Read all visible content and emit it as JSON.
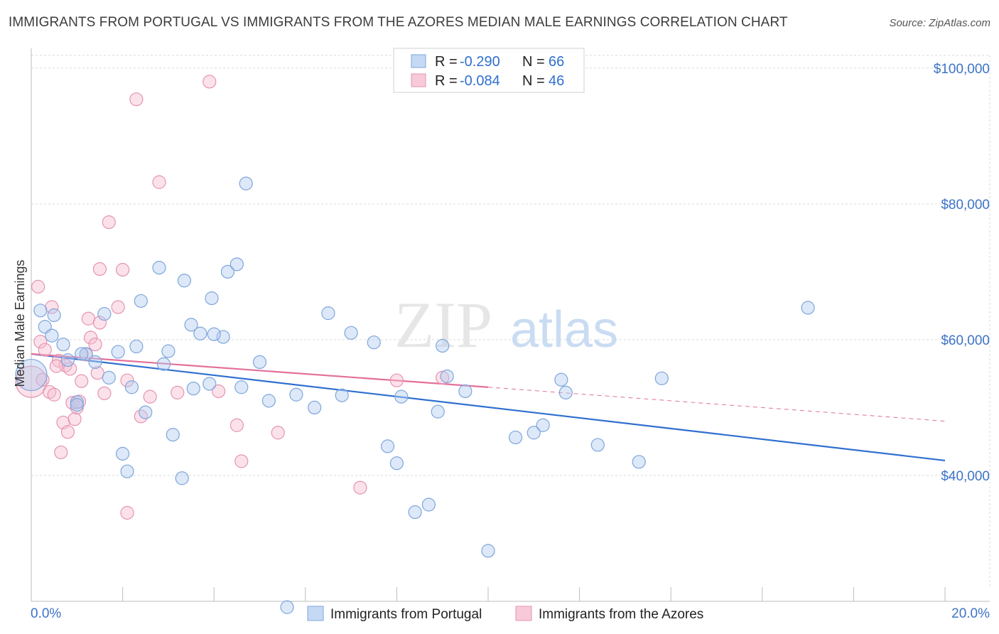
{
  "title": "IMMIGRANTS FROM PORTUGAL VS IMMIGRANTS FROM THE AZORES MEDIAN MALE EARNINGS CORRELATION CHART",
  "source": "Source: ZipAtlas.com",
  "watermark": {
    "zip": "ZIP",
    "atlas": "atlas"
  },
  "chart_data": {
    "type": "scatter",
    "ylabel": "Median Male Earnings",
    "xlim": [
      0,
      20
    ],
    "ylim": [
      20000,
      102000
    ],
    "x_tick_labels": {
      "left": "0.0%",
      "right": "20.0%"
    },
    "y_ticks": [
      {
        "value": 40000,
        "label": "$40,000"
      },
      {
        "value": 60000,
        "label": "$60,000"
      },
      {
        "value": 80000,
        "label": "$80,000"
      },
      {
        "value": 100000,
        "label": "$100,000"
      }
    ],
    "colors": {
      "portugal": "#6f9fdf",
      "azores": "#ea90ae",
      "portugal_line": "#2f6fd0",
      "azores_line": "#e3709a"
    },
    "legend_stats": [
      {
        "r_label": "R = ",
        "r": "-0.290",
        "n_label": "N = ",
        "n": "66"
      },
      {
        "r_label": "R = ",
        "r": "-0.084",
        "n_label": "N = ",
        "n": "46"
      }
    ],
    "series": [
      {
        "name": "Immigrants from Portugal",
        "trend": {
          "x0": 0,
          "y0": 57900,
          "x1": 20,
          "y1": 42200
        },
        "points": [
          [
            0.0,
            54800,
            1
          ],
          [
            0.2,
            64300,
            0
          ],
          [
            0.3,
            61900,
            0
          ],
          [
            0.45,
            60600,
            0
          ],
          [
            0.5,
            63600,
            0
          ],
          [
            0.7,
            59300,
            0
          ],
          [
            0.8,
            57000,
            0
          ],
          [
            1.0,
            50800,
            0
          ],
          [
            1.0,
            50400,
            0
          ],
          [
            1.2,
            57900,
            0
          ],
          [
            1.4,
            56700,
            0
          ],
          [
            1.6,
            63800,
            0
          ],
          [
            1.7,
            54400,
            0
          ],
          [
            1.9,
            58200,
            0
          ],
          [
            2.0,
            43200,
            0
          ],
          [
            2.1,
            40600,
            0
          ],
          [
            2.2,
            53000,
            0
          ],
          [
            2.3,
            59000,
            0
          ],
          [
            2.4,
            65700,
            0
          ],
          [
            2.5,
            49300,
            0
          ],
          [
            2.8,
            70600,
            0
          ],
          [
            2.9,
            56400,
            0
          ],
          [
            3.0,
            58300,
            0
          ],
          [
            3.1,
            46000,
            0
          ],
          [
            3.3,
            39600,
            0
          ],
          [
            3.35,
            68700,
            0
          ],
          [
            3.5,
            62200,
            0
          ],
          [
            3.55,
            52800,
            0
          ],
          [
            3.7,
            60900,
            0
          ],
          [
            3.9,
            53500,
            0
          ],
          [
            3.95,
            66100,
            0
          ],
          [
            4.2,
            60400,
            0
          ],
          [
            4.3,
            70000,
            0
          ],
          [
            4.5,
            71100,
            0
          ],
          [
            4.6,
            53000,
            0
          ],
          [
            4.7,
            83000,
            0
          ],
          [
            5.0,
            56700,
            0
          ],
          [
            5.2,
            51000,
            0
          ],
          [
            5.6,
            20600,
            0
          ],
          [
            5.8,
            51900,
            0
          ],
          [
            6.2,
            50000,
            0
          ],
          [
            6.5,
            63900,
            0
          ],
          [
            6.8,
            51800,
            0
          ],
          [
            7.0,
            61000,
            0
          ],
          [
            7.5,
            59600,
            0
          ],
          [
            7.8,
            44300,
            0
          ],
          [
            8.0,
            41800,
            0
          ],
          [
            8.1,
            51600,
            0
          ],
          [
            8.4,
            34600,
            0
          ],
          [
            8.7,
            35700,
            0
          ],
          [
            8.9,
            49400,
            0
          ],
          [
            9.0,
            59100,
            0
          ],
          [
            9.1,
            54600,
            0
          ],
          [
            9.5,
            52400,
            0
          ],
          [
            10.0,
            28900,
            0
          ],
          [
            10.6,
            45600,
            0
          ],
          [
            11.0,
            46300,
            0
          ],
          [
            11.2,
            47400,
            0
          ],
          [
            11.6,
            54100,
            0
          ],
          [
            11.7,
            52200,
            0
          ],
          [
            12.4,
            44500,
            0
          ],
          [
            13.3,
            42000,
            0
          ],
          [
            13.8,
            54300,
            0
          ],
          [
            17.0,
            64700,
            0
          ],
          [
            1.1,
            57900,
            0
          ],
          [
            4.0,
            60800,
            0
          ]
        ]
      },
      {
        "name": "Immigrants from the Azores",
        "trend": {
          "x0": 0,
          "y0": 57900,
          "x1": 10,
          "y1": 53000,
          "dash_x1": 20,
          "dash_y1": 48000
        },
        "points": [
          [
            0.0,
            53800,
            1
          ],
          [
            0.15,
            67800,
            0
          ],
          [
            0.2,
            59700,
            0
          ],
          [
            0.25,
            54100,
            0
          ],
          [
            0.3,
            58500,
            0
          ],
          [
            0.4,
            52300,
            0
          ],
          [
            0.45,
            64800,
            0
          ],
          [
            0.5,
            51900,
            0
          ],
          [
            0.6,
            56900,
            0
          ],
          [
            0.65,
            43400,
            0
          ],
          [
            0.7,
            47800,
            0
          ],
          [
            0.75,
            56200,
            0
          ],
          [
            0.8,
            46400,
            0
          ],
          [
            0.85,
            55700,
            0
          ],
          [
            0.9,
            50700,
            0
          ],
          [
            0.95,
            48300,
            0
          ],
          [
            1.0,
            50000,
            0
          ],
          [
            1.1,
            53900,
            0
          ],
          [
            1.2,
            57800,
            0
          ],
          [
            1.25,
            63100,
            0
          ],
          [
            1.3,
            60300,
            0
          ],
          [
            1.4,
            59300,
            0
          ],
          [
            1.45,
            55100,
            0
          ],
          [
            1.5,
            62500,
            0
          ],
          [
            1.5,
            70400,
            0
          ],
          [
            1.6,
            52100,
            0
          ],
          [
            1.7,
            77300,
            0
          ],
          [
            1.9,
            64800,
            0
          ],
          [
            2.0,
            70300,
            0
          ],
          [
            2.1,
            54000,
            0
          ],
          [
            2.1,
            34500,
            0
          ],
          [
            2.3,
            95400,
            0
          ],
          [
            2.4,
            48700,
            0
          ],
          [
            2.6,
            51600,
            0
          ],
          [
            2.8,
            83200,
            0
          ],
          [
            3.2,
            52200,
            0
          ],
          [
            3.9,
            98000,
            0
          ],
          [
            4.1,
            52400,
            0
          ],
          [
            4.5,
            47400,
            0
          ],
          [
            4.6,
            42100,
            0
          ],
          [
            5.4,
            46300,
            0
          ],
          [
            7.2,
            38200,
            0
          ],
          [
            8.0,
            54000,
            0
          ],
          [
            9.0,
            54400,
            0
          ],
          [
            1.05,
            50900,
            0
          ],
          [
            0.55,
            56100,
            0
          ]
        ]
      }
    ]
  },
  "bottom_legend": [
    "Immigrants from Portugal",
    "Immigrants from the Azores"
  ]
}
